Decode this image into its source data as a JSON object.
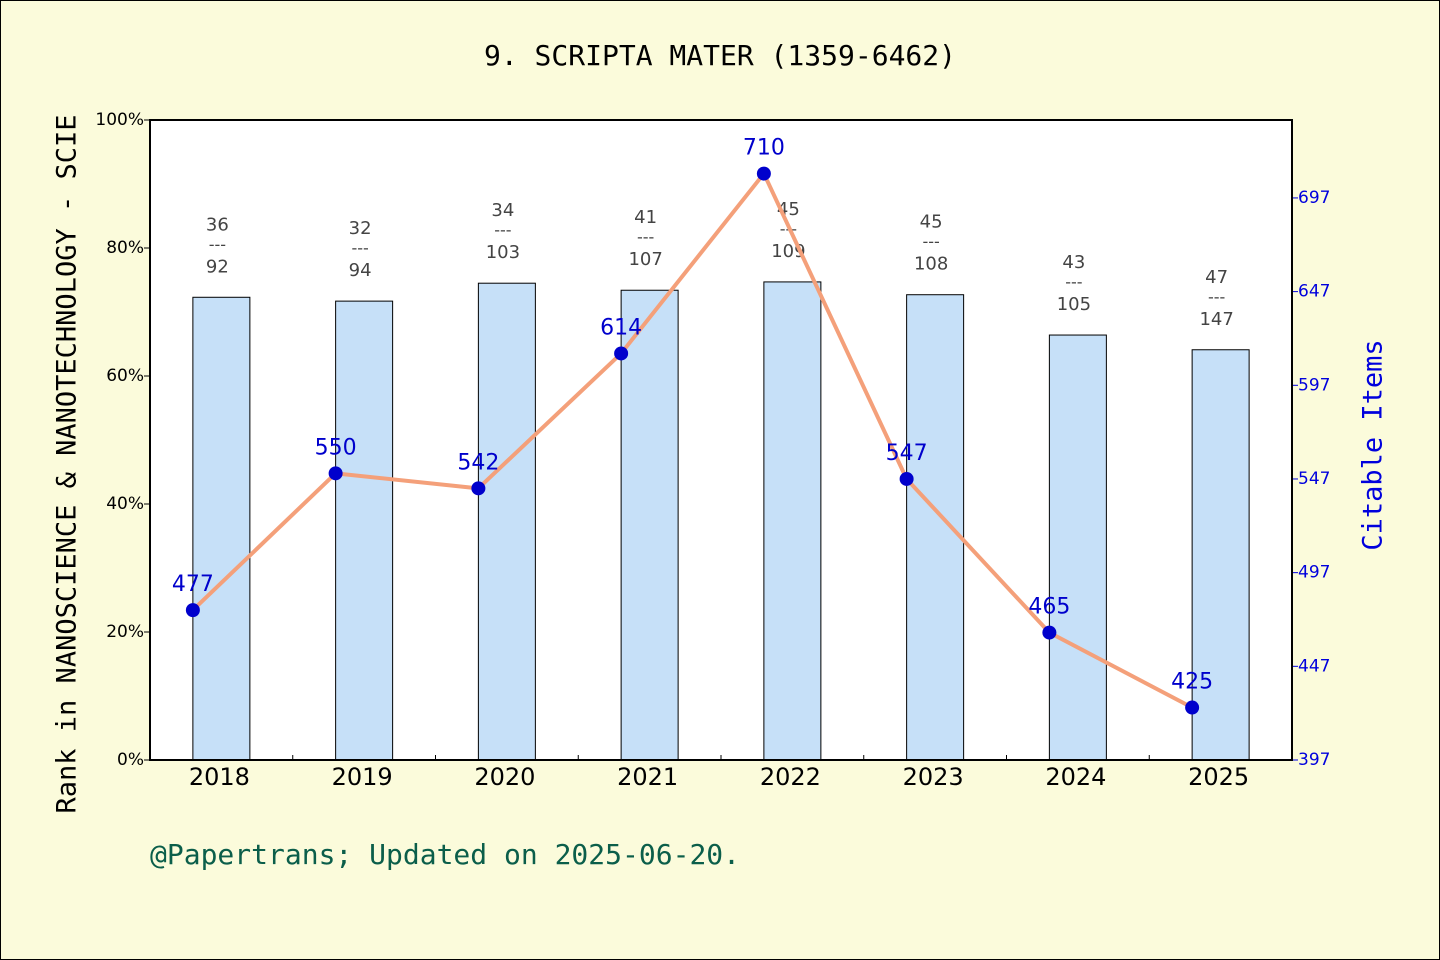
{
  "chart_data": {
    "type": "combo",
    "title": "9. SCRIPTA MATER (1359-6462)",
    "y_label": "Rank in NANOSCIENCE & NANOTECHNOLOGY - SCIE",
    "y2_label": "Citable Items",
    "footer": "@Papertrans; Updated on 2025-06-20.",
    "categories": [
      "2018",
      "2019",
      "2020",
      "2021",
      "2022",
      "2023",
      "2024",
      "2025"
    ],
    "series": [
      {
        "type": "bar",
        "color": "#c6e0f8",
        "values": [
          72.3,
          71.7,
          74.5,
          73.4,
          74.7,
          72.7,
          66.4,
          64.1
        ]
      },
      {
        "type": "line",
        "axis": "y2",
        "color": "#f4a07a",
        "point_color": "#0000cc",
        "values": [
          477,
          550,
          542,
          614,
          710,
          547,
          465,
          425
        ]
      }
    ],
    "ranks": [
      36,
      32,
      34,
      41,
      45,
      45,
      43,
      47
    ],
    "totals": [
      92,
      94,
      103,
      107,
      109,
      108,
      105,
      147
    ],
    "rank_separator": "---",
    "ylim": [
      0,
      100
    ],
    "yticks": [
      {
        "value": 0,
        "label": "0%"
      },
      {
        "value": 20,
        "label": "20%"
      },
      {
        "value": 40,
        "label": "40%"
      },
      {
        "value": 60,
        "label": "60%"
      },
      {
        "value": 80,
        "label": "80%"
      },
      {
        "value": 100,
        "label": "100%"
      }
    ],
    "y2lim": [
      397,
      738.6
    ],
    "y2ticks": [
      397,
      447,
      497,
      547,
      597,
      647,
      697
    ]
  }
}
